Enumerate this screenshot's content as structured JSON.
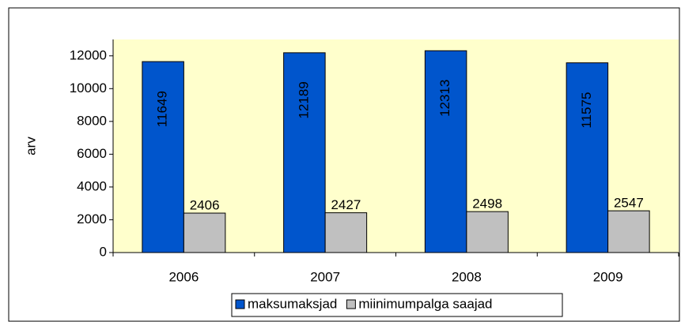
{
  "chart_data": {
    "type": "bar",
    "categories": [
      "2006",
      "2007",
      "2008",
      "2009"
    ],
    "series": [
      {
        "name": "maksumaksjad",
        "color": "#0055cc",
        "values": [
          11649,
          12189,
          12313,
          11575
        ]
      },
      {
        "name": "miinimumpalga saajad",
        "color": "#c0c0c0",
        "values": [
          2406,
          2427,
          2498,
          2547
        ]
      }
    ],
    "y_label": "arv",
    "ylim": [
      0,
      13000
    ],
    "yticks": [
      0,
      2000,
      4000,
      6000,
      8000,
      10000,
      12000
    ],
    "grid": false,
    "legend": "bottom"
  }
}
